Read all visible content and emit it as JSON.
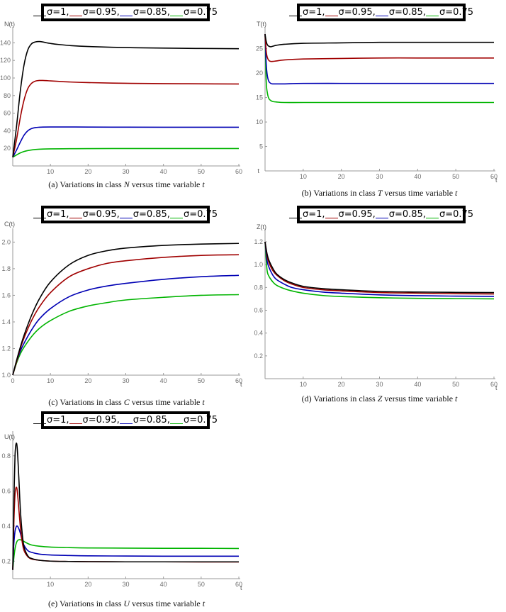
{
  "legend": {
    "symbol": "σ",
    "entries": [
      {
        "label": "σ=1,",
        "value": "1",
        "color": "#000000"
      },
      {
        "label": "σ=0.95,",
        "value": "0.95",
        "color": "#a00000"
      },
      {
        "label": "σ=0.85,",
        "value": "0.85",
        "color": "#0000b4"
      },
      {
        "label": "σ=0.75",
        "value": "0.75",
        "color": "#00b400"
      }
    ]
  },
  "chart_data": [
    {
      "id": "a",
      "type": "line",
      "caption": {
        "prefix": "(a) Variations in class ",
        "var": "N",
        "suffix": " versus time variable ",
        "tvar": "t"
      },
      "ylabel": "N(t)",
      "xlabel": "",
      "xlim": [
        0,
        60
      ],
      "ylim": [
        0,
        150
      ],
      "xticks": [
        10,
        20,
        30,
        40,
        50,
        60
      ],
      "yticks": [
        20,
        40,
        60,
        80,
        100,
        120,
        140
      ],
      "series": [
        {
          "color": "#000000",
          "x": [
            0,
            1,
            2,
            3,
            4,
            5,
            6,
            7,
            8,
            9,
            10,
            12,
            15,
            20,
            30,
            40,
            50,
            60
          ],
          "y": [
            10,
            45,
            85,
            115,
            132,
            139,
            141,
            141.5,
            141,
            140,
            139.3,
            138.2,
            137,
            135.8,
            134.6,
            134,
            133.6,
            133.3
          ]
        },
        {
          "color": "#a00000",
          "x": [
            0,
            1,
            2,
            3,
            4,
            5,
            6,
            7,
            8,
            9,
            10,
            12,
            15,
            20,
            30,
            40,
            50,
            60
          ],
          "y": [
            10,
            30,
            55,
            75,
            88,
            94,
            96.5,
            97.2,
            97.2,
            97,
            96.7,
            96.2,
            95.5,
            94.8,
            94,
            93.6,
            93.4,
            93.2
          ]
        },
        {
          "color": "#0000b4",
          "x": [
            0,
            1,
            2,
            3,
            4,
            5,
            6,
            7,
            8,
            10,
            15,
            20,
            30,
            40,
            50,
            60
          ],
          "y": [
            10,
            18,
            27,
            35,
            40,
            42.5,
            43.6,
            44,
            44.2,
            44.3,
            44.3,
            44.2,
            44.1,
            44,
            44,
            44
          ]
        },
        {
          "color": "#00b400",
          "x": [
            0,
            1,
            2,
            3,
            4,
            5,
            6,
            8,
            10,
            15,
            20,
            30,
            40,
            50,
            60
          ],
          "y": [
            10,
            12.5,
            14.8,
            16.4,
            17.5,
            18.2,
            18.7,
            19.2,
            19.4,
            19.6,
            19.7,
            19.8,
            19.8,
            19.8,
            19.8
          ]
        }
      ]
    },
    {
      "id": "b",
      "type": "line",
      "caption": {
        "prefix": "(b) Variations in class ",
        "var": "T",
        "suffix": " versus time variable ",
        "tvar": "t"
      },
      "ylabel": "T(t)",
      "xlabel": "t",
      "xlim": [
        0,
        60
      ],
      "ylim": [
        0,
        28
      ],
      "xticks": [
        10,
        20,
        30,
        40,
        50,
        60
      ],
      "yticks": [
        5,
        10,
        15,
        20,
        25
      ],
      "series": [
        {
          "color": "#000000",
          "x": [
            0,
            0.3,
            0.6,
            1,
            1.5,
            2,
            3,
            5,
            10,
            20,
            30,
            40,
            50,
            60
          ],
          "y": [
            28,
            26.5,
            25.8,
            25.5,
            25.4,
            25.5,
            25.7,
            25.9,
            26.1,
            26.2,
            26.3,
            26.3,
            26.3,
            26.3
          ]
        },
        {
          "color": "#a00000",
          "x": [
            0,
            0.3,
            0.6,
            1,
            1.5,
            2,
            3,
            5,
            10,
            20,
            30,
            40,
            50,
            60
          ],
          "y": [
            28,
            24.5,
            23.2,
            22.6,
            22.4,
            22.4,
            22.5,
            22.7,
            22.9,
            23,
            23.1,
            23.1,
            23.1,
            23.1
          ]
        },
        {
          "color": "#0000b4",
          "x": [
            0,
            0.3,
            0.6,
            1,
            1.5,
            2,
            3,
            5,
            10,
            20,
            30,
            40,
            50,
            60
          ],
          "y": [
            28,
            22,
            19.5,
            18.3,
            17.9,
            17.8,
            17.8,
            17.8,
            17.9,
            17.9,
            17.9,
            17.9,
            17.9,
            17.9
          ]
        },
        {
          "color": "#00b400",
          "x": [
            0,
            0.3,
            0.6,
            1,
            1.5,
            2,
            3,
            5,
            10,
            20,
            30,
            40,
            50,
            60
          ],
          "y": [
            28,
            18.5,
            16,
            14.8,
            14.4,
            14.2,
            14.1,
            14.0,
            14.0,
            14.0,
            14.0,
            14.0,
            14.0,
            14.0
          ]
        }
      ]
    },
    {
      "id": "c",
      "type": "line",
      "caption": {
        "prefix": "(c) Variations in class ",
        "var": "C",
        "suffix": " versus time variable ",
        "tvar": "t"
      },
      "ylabel": "C(t)",
      "xlabel": "t",
      "xlim": [
        0,
        60
      ],
      "ylim": [
        1.0,
        2.05
      ],
      "xticks": [
        0,
        10,
        20,
        30,
        40,
        50,
        60
      ],
      "yticks": [
        1.0,
        1.2,
        1.4,
        1.6,
        1.8,
        2.0
      ],
      "series": [
        {
          "color": "#000000",
          "x": [
            0,
            1,
            2,
            3,
            5,
            7,
            10,
            15,
            20,
            25,
            30,
            40,
            50,
            60
          ],
          "y": [
            1.0,
            1.11,
            1.21,
            1.3,
            1.45,
            1.57,
            1.7,
            1.83,
            1.9,
            1.935,
            1.955,
            1.975,
            1.985,
            1.99
          ]
        },
        {
          "color": "#a00000",
          "x": [
            0,
            1,
            2,
            3,
            5,
            7,
            10,
            15,
            20,
            25,
            30,
            40,
            50,
            60
          ],
          "y": [
            1.0,
            1.1,
            1.2,
            1.28,
            1.41,
            1.51,
            1.62,
            1.74,
            1.8,
            1.84,
            1.86,
            1.885,
            1.9,
            1.905
          ]
        },
        {
          "color": "#0000b4",
          "x": [
            0,
            1,
            2,
            3,
            5,
            7,
            10,
            15,
            20,
            25,
            30,
            40,
            50,
            60
          ],
          "y": [
            1.0,
            1.1,
            1.18,
            1.24,
            1.34,
            1.42,
            1.5,
            1.59,
            1.64,
            1.67,
            1.69,
            1.72,
            1.74,
            1.75
          ]
        },
        {
          "color": "#00b400",
          "x": [
            0,
            1,
            2,
            3,
            5,
            7,
            10,
            15,
            20,
            25,
            30,
            40,
            50,
            60
          ],
          "y": [
            1.0,
            1.09,
            1.16,
            1.21,
            1.29,
            1.35,
            1.41,
            1.48,
            1.52,
            1.545,
            1.565,
            1.585,
            1.6,
            1.605
          ]
        }
      ]
    },
    {
      "id": "d",
      "type": "line",
      "caption": {
        "prefix": "(d) Variations in class ",
        "var": "Z",
        "suffix": " versus time variable ",
        "tvar": "t"
      },
      "ylabel": "Z(t)",
      "xlabel": "t",
      "xlim": [
        0,
        60
      ],
      "ylim": [
        0,
        1.25
      ],
      "xticks": [
        10,
        20,
        30,
        40,
        50,
        60
      ],
      "yticks": [
        0.2,
        0.4,
        0.6,
        0.8,
        1.0,
        1.2
      ],
      "series": [
        {
          "color": "#000000",
          "x": [
            0,
            0.5,
            1,
            2,
            3,
            5,
            7,
            10,
            15,
            20,
            30,
            40,
            50,
            60
          ],
          "y": [
            1.2,
            1.1,
            1.04,
            0.97,
            0.92,
            0.87,
            0.84,
            0.81,
            0.79,
            0.78,
            0.765,
            0.76,
            0.757,
            0.755
          ]
        },
        {
          "color": "#a00000",
          "x": [
            0,
            0.5,
            1,
            2,
            3,
            5,
            7,
            10,
            15,
            20,
            30,
            40,
            50,
            60
          ],
          "y": [
            1.2,
            1.08,
            1.02,
            0.95,
            0.91,
            0.86,
            0.83,
            0.8,
            0.78,
            0.77,
            0.755,
            0.75,
            0.745,
            0.743
          ]
        },
        {
          "color": "#0000b4",
          "x": [
            0,
            0.5,
            1,
            2,
            3,
            5,
            7,
            10,
            15,
            20,
            30,
            40,
            50,
            60
          ],
          "y": [
            1.2,
            1.04,
            0.98,
            0.91,
            0.87,
            0.83,
            0.8,
            0.78,
            0.76,
            0.75,
            0.735,
            0.728,
            0.724,
            0.722
          ]
        },
        {
          "color": "#00b400",
          "x": [
            0,
            0.5,
            1,
            2,
            3,
            5,
            7,
            10,
            15,
            20,
            30,
            40,
            50,
            60
          ],
          "y": [
            1.2,
            0.96,
            0.9,
            0.85,
            0.82,
            0.79,
            0.77,
            0.75,
            0.73,
            0.72,
            0.71,
            0.705,
            0.702,
            0.7
          ]
        }
      ]
    },
    {
      "id": "e",
      "type": "line",
      "caption": {
        "prefix": "(e) Variations in class ",
        "var": "U",
        "suffix": " versus time variable ",
        "tvar": "t"
      },
      "ylabel": "U(t)",
      "xlabel": "t",
      "xlim": [
        0,
        60
      ],
      "ylim": [
        0.1,
        0.9
      ],
      "xticks": [
        10,
        20,
        30,
        40,
        50,
        60
      ],
      "yticks": [
        0.2,
        0.4,
        0.6,
        0.8
      ],
      "series": [
        {
          "color": "#000000",
          "x": [
            0,
            0.3,
            0.6,
            0.9,
            1.2,
            1.6,
            2,
            2.5,
            3,
            4,
            5,
            7,
            10,
            15,
            20,
            30,
            40,
            50,
            60
          ],
          "y": [
            0.15,
            0.55,
            0.8,
            0.87,
            0.84,
            0.68,
            0.5,
            0.36,
            0.28,
            0.23,
            0.215,
            0.205,
            0.2,
            0.198,
            0.197,
            0.196,
            0.196,
            0.196,
            0.196
          ]
        },
        {
          "color": "#a00000",
          "x": [
            0,
            0.3,
            0.6,
            0.9,
            1.2,
            1.6,
            2,
            2.5,
            3,
            4,
            5,
            7,
            10,
            15,
            20,
            30,
            40,
            50,
            60
          ],
          "y": [
            0.15,
            0.42,
            0.58,
            0.62,
            0.6,
            0.5,
            0.4,
            0.31,
            0.26,
            0.225,
            0.212,
            0.205,
            0.2,
            0.198,
            0.197,
            0.196,
            0.196,
            0.195,
            0.195
          ]
        },
        {
          "color": "#0000b4",
          "x": [
            0,
            0.3,
            0.6,
            0.9,
            1.2,
            1.6,
            2,
            2.5,
            3,
            4,
            5,
            7,
            10,
            15,
            20,
            30,
            40,
            50,
            60
          ],
          "y": [
            0.15,
            0.3,
            0.37,
            0.395,
            0.4,
            0.385,
            0.36,
            0.32,
            0.29,
            0.26,
            0.25,
            0.24,
            0.235,
            0.232,
            0.23,
            0.229,
            0.228,
            0.228,
            0.228
          ]
        },
        {
          "color": "#00b400",
          "x": [
            0,
            0.3,
            0.6,
            0.9,
            1.2,
            1.6,
            2,
            2.5,
            3,
            4,
            5,
            7,
            10,
            15,
            20,
            30,
            40,
            50,
            60
          ],
          "y": [
            0.15,
            0.22,
            0.27,
            0.3,
            0.315,
            0.322,
            0.322,
            0.318,
            0.312,
            0.3,
            0.292,
            0.285,
            0.28,
            0.277,
            0.275,
            0.274,
            0.273,
            0.273,
            0.272
          ]
        }
      ]
    }
  ]
}
